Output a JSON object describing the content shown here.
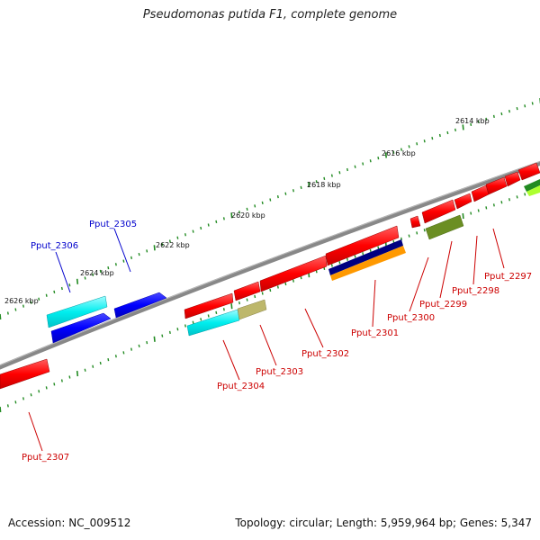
{
  "title": "Pseudomonas putida F1, complete genome",
  "footer": {
    "accession": "Accession: NC_009512",
    "stats": "Topology: circular; Length: 5,959,964 bp; Genes: 5,347"
  },
  "scale_labels": [
    "2626 kbp",
    "2624 kbp",
    "2622 kbp",
    "2620 kbp",
    "2618 kbp",
    "2616 kbp",
    "2614 kbp"
  ],
  "genes": [
    {
      "id": "Pput_2305",
      "color": "#0000cc"
    },
    {
      "id": "Pput_2306",
      "color": "#0000cc"
    },
    {
      "id": "Pput_2297",
      "color": "#cc0000"
    },
    {
      "id": "Pput_2298",
      "color": "#cc0000"
    },
    {
      "id": "Pput_2299",
      "color": "#cc0000"
    },
    {
      "id": "Pput_2300",
      "color": "#cc0000"
    },
    {
      "id": "Pput_2301",
      "color": "#cc0000"
    },
    {
      "id": "Pput_2302",
      "color": "#cc0000"
    },
    {
      "id": "Pput_2303",
      "color": "#cc0000"
    },
    {
      "id": "Pput_2304",
      "color": "#cc0000"
    },
    {
      "id": "Pput_2307",
      "color": "#cc0000"
    }
  ],
  "colors": {
    "feature_red": "#ff0000",
    "feature_blue": "#0000ff",
    "feature_cyan": "#00e5ee",
    "feature_navy": "#000080",
    "feature_orange": "#ff9900",
    "feature_olive": "#6b8e23",
    "feature_khaki": "#bdb76b",
    "feature_green": "#228b22",
    "feature_lime": "#adff2f",
    "backbone": "#888888",
    "tick": "#228b22"
  }
}
